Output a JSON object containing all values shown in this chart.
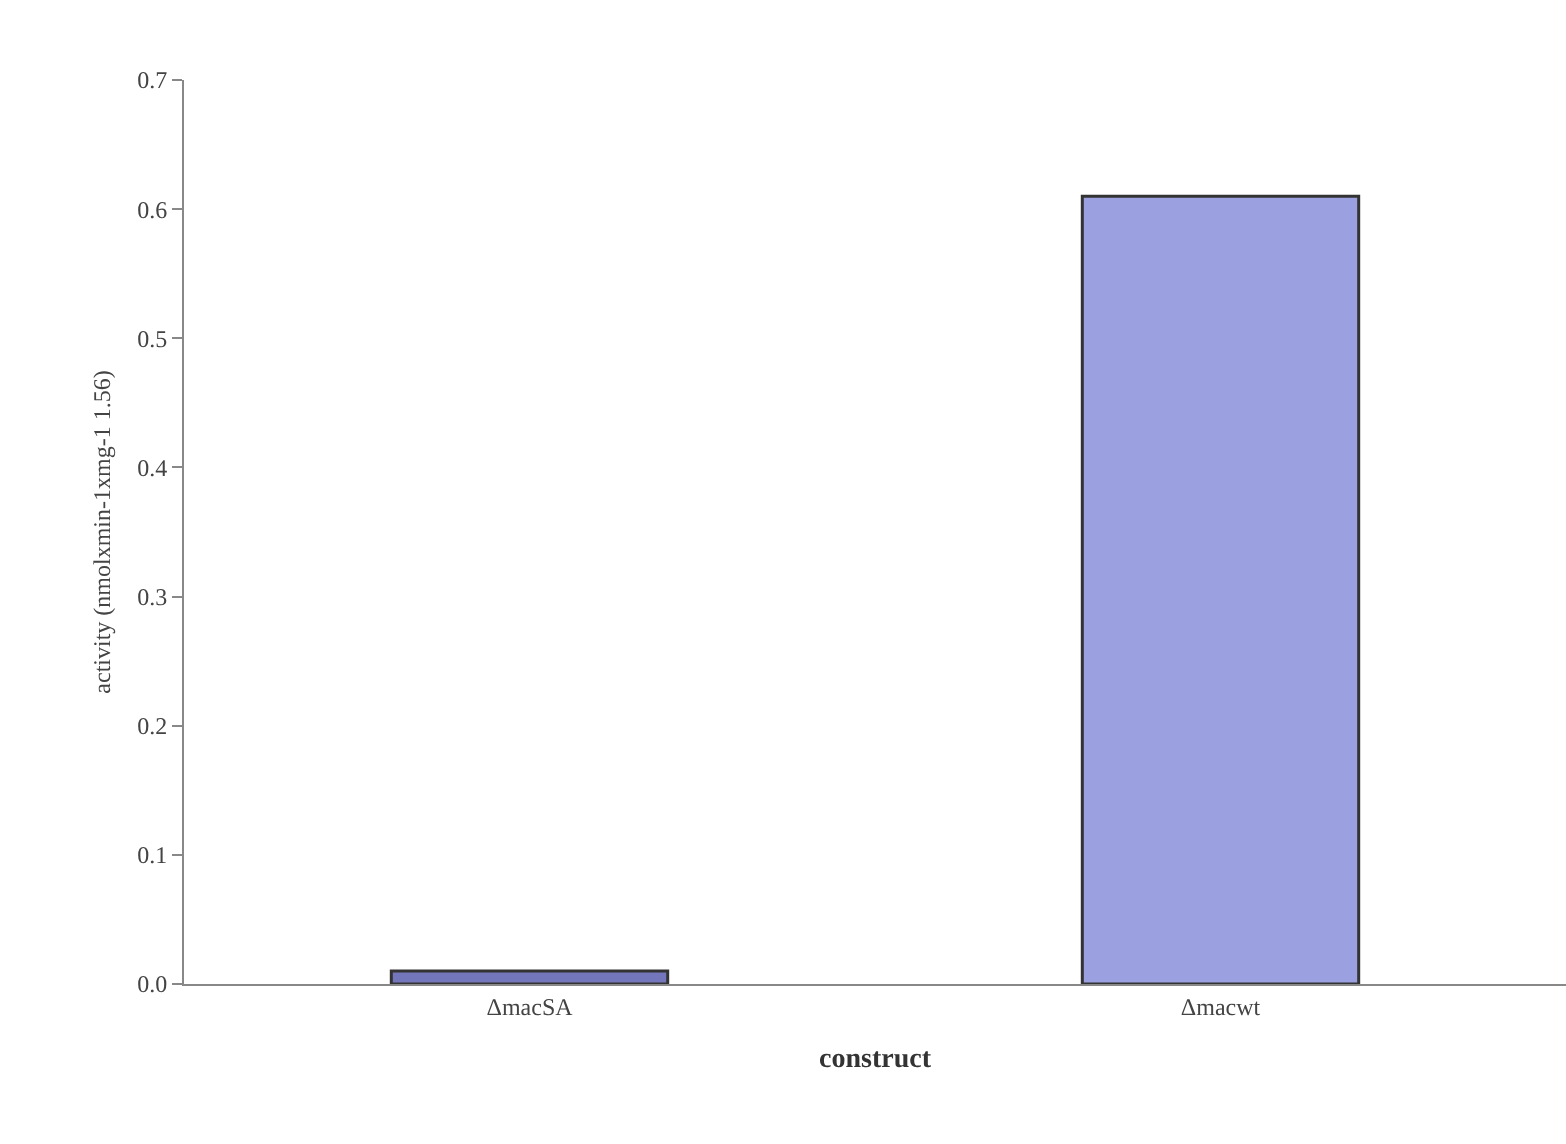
{
  "chart_data": {
    "type": "bar",
    "categories": [
      "ΔmacSA",
      "Δmacwt"
    ],
    "values": [
      0.01,
      0.61
    ],
    "colors": [
      "#7476bb",
      "#9aa0e0"
    ],
    "xlabel": "construct",
    "ylabel": "activity (nmolxmin-1xmg-1 1.56)",
    "ylim": [
      0,
      0.7
    ],
    "yticks": [
      {
        "value": 0,
        "label": "0.0"
      },
      0.1,
      0.2,
      0.3,
      0.4,
      0.5,
      0.6,
      0.7
    ],
    "grid": false
  }
}
